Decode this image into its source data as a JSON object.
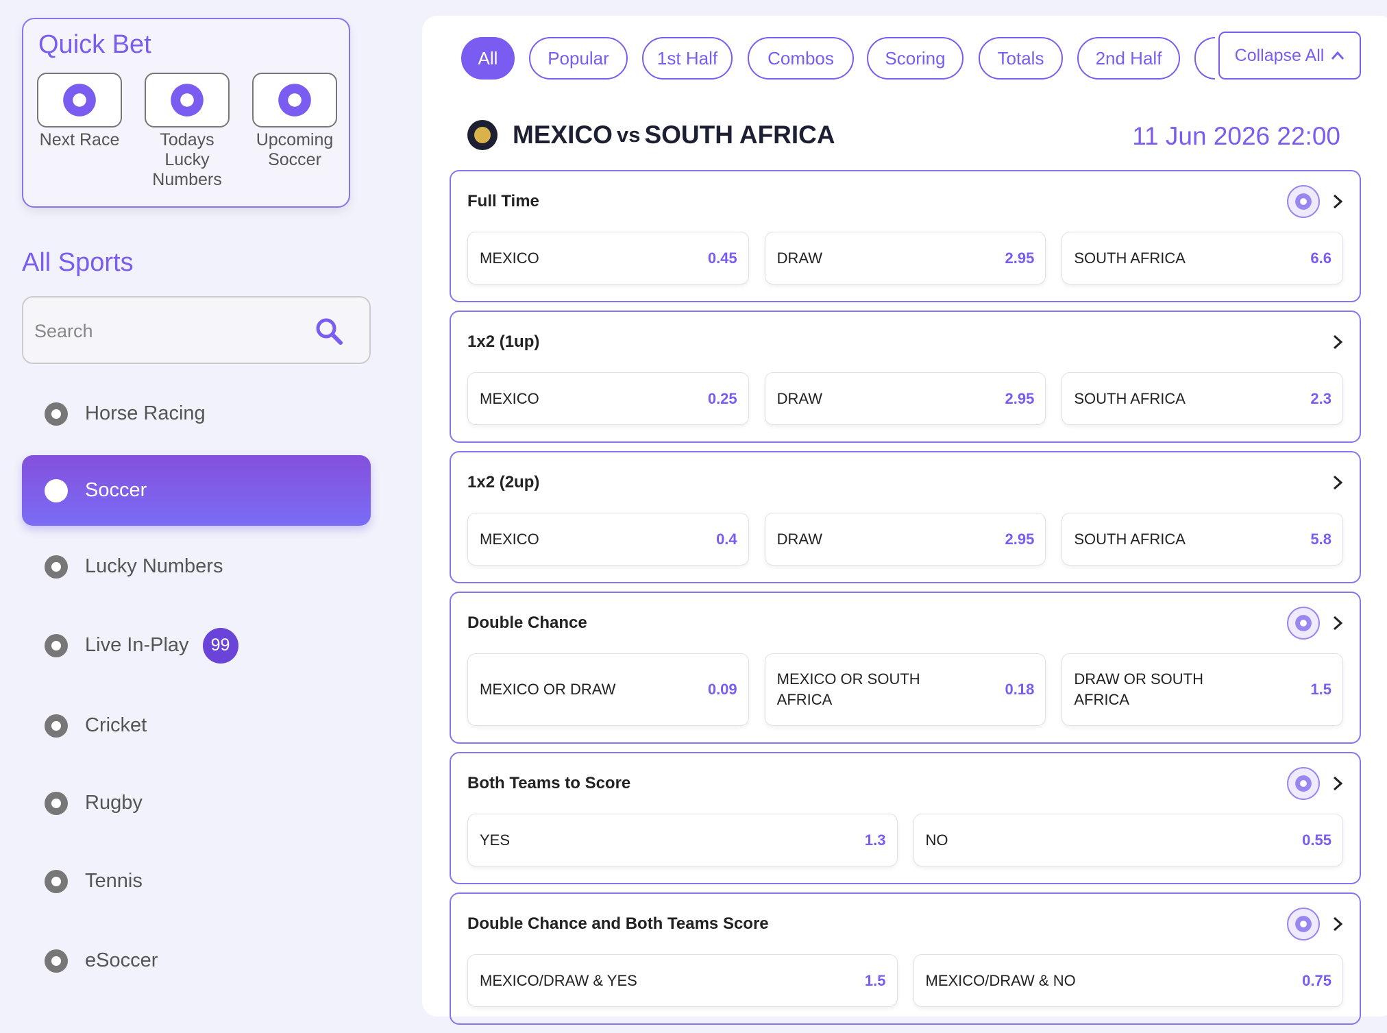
{
  "quick_bet": {
    "title": "Quick Bet",
    "items": [
      "Next Race",
      "Todays Lucky Numbers",
      "Upcoming Soccer"
    ]
  },
  "sidebar": {
    "title": "All Sports",
    "search_placeholder": "Search",
    "sports": [
      {
        "name": "Horse Racing"
      },
      {
        "name": "Soccer"
      },
      {
        "name": "Lucky Numbers"
      },
      {
        "name": "Live In-Play",
        "badge": "99"
      },
      {
        "name": "Cricket"
      },
      {
        "name": "Rugby"
      },
      {
        "name": "Tennis"
      },
      {
        "name": "eSoccer"
      }
    ]
  },
  "tabs": [
    "All",
    "Popular",
    "1st Half",
    "Combos",
    "Scoring",
    "Totals",
    "2nd Half"
  ],
  "collapse_label": "Collapse All",
  "match": {
    "home": "MEXICO",
    "vs": "vs",
    "away": "SOUTH AFRICA",
    "datetime": "11 Jun 2026 22:00"
  },
  "markets": [
    {
      "title": "Full Time",
      "selections": [
        {
          "name": "MEXICO",
          "odds": "0.45"
        },
        {
          "name": "DRAW",
          "odds": "2.95"
        },
        {
          "name": "SOUTH AFRICA",
          "odds": "6.6"
        }
      ]
    },
    {
      "title": "1x2 (1up)",
      "selections": [
        {
          "name": "MEXICO",
          "odds": "0.25"
        },
        {
          "name": "DRAW",
          "odds": "2.95"
        },
        {
          "name": "SOUTH AFRICA",
          "odds": "2.3"
        }
      ]
    },
    {
      "title": "1x2 (2up)",
      "selections": [
        {
          "name": "MEXICO",
          "odds": "0.4"
        },
        {
          "name": "DRAW",
          "odds": "2.95"
        },
        {
          "name": "SOUTH AFRICA",
          "odds": "5.8"
        }
      ]
    },
    {
      "title": "Double Chance",
      "selections": [
        {
          "name": "MEXICO OR DRAW",
          "odds": "0.09"
        },
        {
          "name": "MEXICO OR SOUTH AFRICA",
          "odds": "0.18"
        },
        {
          "name": "DRAW OR SOUTH AFRICA",
          "odds": "1.5"
        }
      ]
    },
    {
      "title": "Both Teams to Score",
      "selections": [
        {
          "name": "YES",
          "odds": "1.3"
        },
        {
          "name": "NO",
          "odds": "0.55"
        }
      ]
    },
    {
      "title": "Double Chance and Both Teams Score",
      "selections": [
        {
          "name": "MEXICO/DRAW & YES",
          "odds": "1.5"
        },
        {
          "name": "MEXICO/DRAW & NO",
          "odds": "0.75"
        }
      ]
    }
  ]
}
